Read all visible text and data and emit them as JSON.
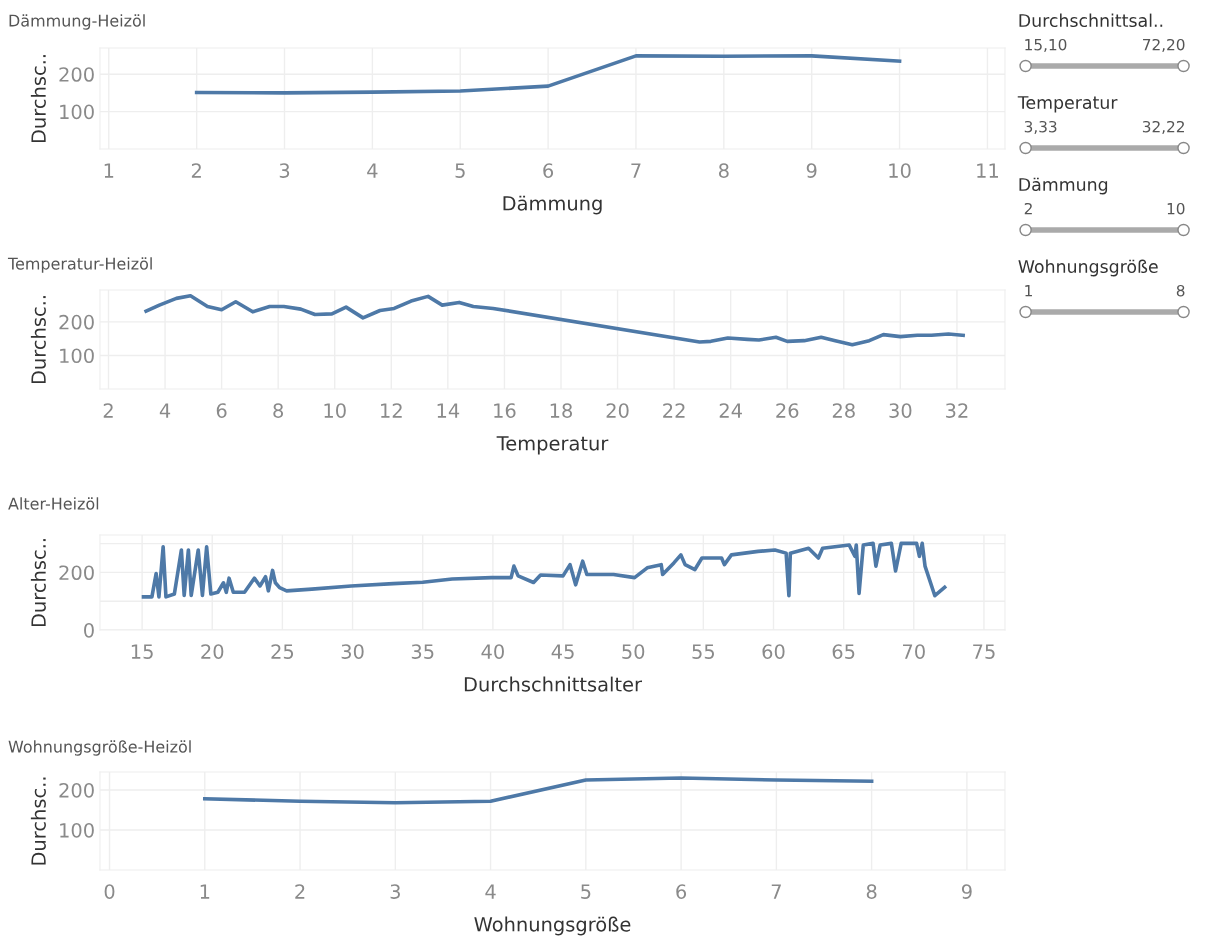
{
  "chart_data": [
    {
      "type": "line",
      "title": "Dämmung-Heizöl",
      "xlabel": "Dämmung",
      "ylabel": "Durchsc..",
      "xlim": [
        0.9,
        11.2
      ],
      "ylim": [
        0,
        270
      ],
      "xticks": [
        1,
        2,
        3,
        4,
        5,
        6,
        7,
        8,
        9,
        10,
        11
      ],
      "yticks": [
        100,
        200
      ],
      "grid": true,
      "legend": false,
      "series": [
        {
          "color": "#4e79a7",
          "x": [
            2,
            3,
            4,
            5,
            6,
            7,
            8,
            9,
            10
          ],
          "values": [
            151,
            150,
            152,
            155,
            168,
            249,
            248,
            249,
            235
          ]
        }
      ]
    },
    {
      "type": "line",
      "title": "Temperatur-Heizöl",
      "xlabel": "Temperatur",
      "ylabel": "Durchsc..",
      "xlim": [
        1.7,
        33.7
      ],
      "ylim": [
        0,
        295
      ],
      "xticks": [
        2,
        4,
        6,
        8,
        10,
        12,
        14,
        16,
        18,
        20,
        22,
        24,
        26,
        28,
        30,
        32
      ],
      "yticks": [
        100,
        200
      ],
      "grid": true,
      "legend": false,
      "series": [
        {
          "color": "#4e79a7",
          "x": [
            3.33,
            3.8,
            4.4,
            4.9,
            5.5,
            6.0,
            6.5,
            7.1,
            7.7,
            8.2,
            8.8,
            9.3,
            9.9,
            10.4,
            11.0,
            11.6,
            12.1,
            12.7,
            13.3,
            13.8,
            14.4,
            14.9,
            15.6,
            22.9,
            23.3,
            23.9,
            24.6,
            25.0,
            25.6,
            26.0,
            26.6,
            27.2,
            27.7,
            28.3,
            28.9,
            29.4,
            30.0,
            30.6,
            31.1,
            31.7,
            32.22
          ],
          "values": [
            232,
            250,
            270,
            278,
            246,
            236,
            260,
            230,
            246,
            246,
            238,
            222,
            224,
            244,
            212,
            234,
            240,
            262,
            276,
            250,
            258,
            246,
            240,
            140,
            142,
            152,
            148,
            146,
            154,
            142,
            144,
            154,
            144,
            132,
            144,
            162,
            156,
            160,
            160,
            164,
            160
          ]
        }
      ]
    },
    {
      "type": "line",
      "title": "Alter-Heizöl",
      "xlabel": "Durchschnittsalter",
      "ylabel": "Durchsc..",
      "xlim": [
        12,
        76.5
      ],
      "ylim": [
        0,
        330
      ],
      "xticks": [
        15,
        20,
        25,
        30,
        35,
        40,
        45,
        50,
        55,
        60,
        65,
        70,
        75
      ],
      "yticks": [
        0,
        {
          "value": 100,
          "label": null
        },
        200,
        {
          "value": 300,
          "label": null
        }
      ],
      "grid": true,
      "legend": false,
      "series": [
        {
          "color": "#4e79a7",
          "x": [
            15.1,
            15.7,
            16.0,
            16.2,
            16.5,
            16.7,
            17.3,
            17.8,
            18.0,
            18.3,
            18.5,
            19.0,
            19.3,
            19.6,
            19.9,
            20.4,
            20.8,
            21.0,
            21.2,
            21.5,
            22.3,
            23.0,
            23.4,
            23.8,
            24.0,
            24.3,
            24.5,
            24.8,
            25.3,
            27.1,
            29.9,
            32.9,
            35.0,
            37.1,
            39.9,
            41.3,
            41.5,
            41.8,
            42.9,
            43.4,
            45.0,
            45.5,
            45.9,
            46.4,
            46.7,
            48.6,
            50.1,
            51.0,
            52.0,
            52.1,
            52.9,
            53.4,
            53.7,
            54.4,
            54.9,
            56.3,
            56.5,
            57.0,
            58.9,
            60.1,
            60.9,
            61.1,
            61.2,
            62.5,
            63.2,
            63.5,
            65.4,
            65.8,
            65.9,
            66.1,
            66.4,
            67.1,
            67.3,
            67.6,
            68.4,
            68.7,
            69.1,
            70.2,
            70.4,
            70.6,
            70.8,
            71.5,
            72.2
          ],
          "values": [
            115,
            115,
            196,
            115,
            289,
            115,
            125,
            278,
            120,
            278,
            120,
            278,
            120,
            289,
            125,
            131,
            164,
            131,
            180,
            131,
            131,
            180,
            153,
            185,
            136,
            207,
            164,
            147,
            136,
            142,
            153,
            161,
            166,
            177,
            182,
            182,
            222,
            188,
            165,
            191,
            188,
            227,
            157,
            239,
            193,
            193,
            182,
            216,
            227,
            193,
            233,
            261,
            227,
            210,
            250,
            250,
            227,
            261,
            273,
            278,
            267,
            119,
            267,
            284,
            250,
            284,
            295,
            256,
            295,
            127,
            295,
            301,
            222,
            295,
            301,
            205,
            301,
            301,
            256,
            301,
            222,
            119,
            148
          ]
        }
      ]
    },
    {
      "type": "line",
      "title": "Wohnungsgröße-Heizöl",
      "xlabel": "Wohnungsgröße",
      "ylabel": "Durchsc..",
      "xlim": [
        -0.1,
        9.4
      ],
      "ylim": [
        0,
        245
      ],
      "xticks": [
        0,
        1,
        2,
        3,
        4,
        5,
        6,
        7,
        8,
        9
      ],
      "yticks": [
        100,
        200
      ],
      "grid": true,
      "legend": false,
      "series": [
        {
          "color": "#4e79a7",
          "x": [
            1,
            2,
            3,
            4,
            5,
            6,
            7,
            8
          ],
          "values": [
            178,
            172,
            168,
            172,
            225,
            230,
            225,
            222
          ]
        }
      ]
    },
    {
      "type": "other",
      "annotations": [
        "Durchschnittsal..",
        "15,10",
        "72,20",
        "Temperatur",
        "3,33",
        "32,22",
        "Dämmung",
        "2",
        "10",
        "Wohnungsgröße",
        "1",
        "8"
      ]
    }
  ]
}
